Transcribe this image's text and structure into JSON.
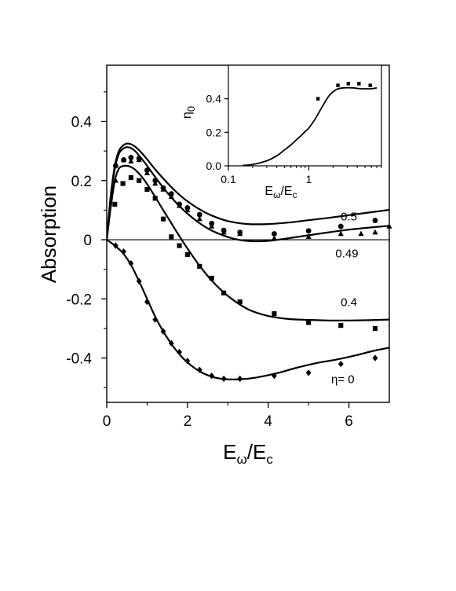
{
  "chart_data": [
    {
      "type": "line",
      "title": "",
      "xlabel": {
        "base": "E",
        "sub1": "ω",
        "sep": "/",
        "base2": "E",
        "sub2": "c"
      },
      "ylabel": "Absorption",
      "xlim": [
        0,
        7
      ],
      "ylim": [
        -0.55,
        0.59
      ],
      "x_ticks": [
        0,
        2,
        4,
        6
      ],
      "x_tick_labels": [
        "0",
        "2",
        "4",
        "6"
      ],
      "y_ticks": [
        0.4,
        0.2,
        0,
        -0.2,
        -0.4
      ],
      "y_tick_labels": [
        "0.4",
        "0.2",
        "0",
        "-0.2",
        "-0.4"
      ],
      "zero_line": true,
      "grid": false,
      "curve_labels": [
        {
          "text": "0.5",
          "x": 6.0,
          "y": 0.065
        },
        {
          "text": "0.49",
          "x": 5.95,
          "y": -0.06
        },
        {
          "text": "0.4",
          "x": 6.0,
          "y": -0.225
        },
        {
          "text": "η= 0",
          "x": 5.85,
          "y": -0.485
        }
      ],
      "series": [
        {
          "label": "0.5",
          "marker": "circle",
          "line": {
            "x": [
              0,
              0.1,
              0.2,
              0.3,
              0.4,
              0.5,
              0.6,
              0.7,
              0.8,
              0.9,
              1.0,
              1.2,
              1.4,
              1.6,
              1.8,
              2.0,
              2.3,
              2.6,
              3.0,
              3.5,
              4.0,
              4.5,
              5.0,
              5.5,
              6.0,
              6.5,
              7.0
            ],
            "y": [
              0,
              0.15,
              0.25,
              0.3,
              0.318,
              0.325,
              0.323,
              0.315,
              0.303,
              0.288,
              0.272,
              0.238,
              0.207,
              0.178,
              0.152,
              0.13,
              0.103,
              0.082,
              0.063,
              0.053,
              0.053,
              0.058,
              0.066,
              0.074,
              0.083,
              0.092,
              0.101
            ]
          },
          "points": {
            "x": [
              0.22,
              0.42,
              0.6,
              0.8,
              1.0,
              1.2,
              1.4,
              1.6,
              1.8,
              2.0,
              2.3,
              2.6,
              2.9,
              3.3,
              4.15,
              5.0,
              5.8,
              6.65
            ],
            "y": [
              0.25,
              0.27,
              0.278,
              0.275,
              0.235,
              0.2,
              0.175,
              0.155,
              0.12,
              0.108,
              0.085,
              0.055,
              0.032,
              0.025,
              0.02,
              0.03,
              0.045,
              0.065
            ]
          }
        },
        {
          "label": "0.49",
          "marker": "triangle",
          "line": {
            "x": [
              0,
              0.1,
              0.2,
              0.3,
              0.4,
              0.5,
              0.6,
              0.7,
              0.8,
              0.9,
              1.0,
              1.2,
              1.4,
              1.6,
              1.8,
              2.0,
              2.3,
              2.6,
              3.0,
              3.3,
              3.6,
              4.0,
              4.3,
              4.6,
              5.0,
              5.5,
              6.0,
              6.5,
              7.0
            ],
            "y": [
              0,
              0.14,
              0.24,
              0.29,
              0.307,
              0.313,
              0.31,
              0.3,
              0.285,
              0.268,
              0.25,
              0.212,
              0.176,
              0.143,
              0.114,
              0.088,
              0.056,
              0.031,
              0.009,
              -0.001,
              -0.005,
              -0.004,
              0.001,
              0.007,
              0.015,
              0.025,
              0.034,
              0.041,
              0.047
            ]
          },
          "points": {
            "x": [
              0.22,
              0.42,
              0.6,
              0.8,
              1.0,
              1.2,
              1.4,
              1.6,
              1.8,
              2.0,
              2.3,
              2.6,
              2.9,
              3.3,
              4.15,
              5.0,
              5.8,
              6.3,
              6.65,
              7.0
            ],
            "y": [
              0.2,
              0.27,
              0.265,
              0.27,
              0.225,
              0.19,
              0.17,
              0.145,
              0.115,
              0.1,
              0.07,
              0.045,
              0.025,
              0.02,
              0.005,
              0.01,
              0.02,
              0.02,
              0.025,
              0.045
            ]
          }
        },
        {
          "label": "0.4",
          "marker": "square",
          "line": {
            "x": [
              0,
              0.1,
              0.2,
              0.3,
              0.4,
              0.5,
              0.6,
              0.7,
              0.8,
              0.9,
              1.0,
              1.2,
              1.4,
              1.6,
              1.8,
              2.0,
              2.3,
              2.6,
              3.0,
              3.5,
              4.0,
              4.5,
              5.0,
              5.5,
              6.0,
              6.5,
              7.0
            ],
            "y": [
              0,
              0.11,
              0.2,
              0.24,
              0.249,
              0.25,
              0.246,
              0.237,
              0.224,
              0.207,
              0.188,
              0.145,
              0.1,
              0.056,
              0.012,
              -0.03,
              -0.088,
              -0.138,
              -0.19,
              -0.235,
              -0.258,
              -0.268,
              -0.271,
              -0.273,
              -0.273,
              -0.272,
              -0.27
            ]
          },
          "points": {
            "x": [
              0.2,
              0.4,
              0.6,
              0.8,
              1.0,
              1.2,
              1.4,
              1.6,
              1.8,
              2.0,
              2.3,
              2.6,
              2.9,
              3.3,
              4.15,
              5.0,
              5.8,
              6.65
            ],
            "y": [
              0.12,
              0.19,
              0.21,
              0.2,
              0.17,
              0.14,
              0.07,
              0.01,
              -0.02,
              -0.05,
              -0.09,
              -0.13,
              -0.18,
              -0.21,
              -0.25,
              -0.28,
              -0.29,
              -0.3
            ]
          }
        },
        {
          "label": "η= 0",
          "marker": "diamond",
          "line": {
            "x": [
              0,
              0.2,
              0.4,
              0.6,
              0.8,
              1.0,
              1.2,
              1.4,
              1.6,
              1.8,
              2.0,
              2.3,
              2.6,
              2.9,
              3.3,
              3.7,
              4.2,
              4.7,
              5.2,
              5.7,
              6.2,
              6.6,
              7.0
            ],
            "y": [
              0,
              -0.02,
              -0.045,
              -0.085,
              -0.14,
              -0.2,
              -0.26,
              -0.31,
              -0.352,
              -0.387,
              -0.415,
              -0.445,
              -0.463,
              -0.471,
              -0.472,
              -0.466,
              -0.452,
              -0.433,
              -0.417,
              -0.405,
              -0.39,
              -0.376,
              -0.365
            ]
          },
          "points": {
            "x": [
              0.22,
              0.42,
              0.6,
              0.8,
              1.0,
              1.2,
              1.4,
              1.6,
              1.8,
              2.0,
              2.3,
              2.6,
              2.9,
              3.3,
              4.15,
              5.0,
              5.8,
              6.65
            ],
            "y": [
              -0.02,
              -0.04,
              -0.08,
              -0.14,
              -0.21,
              -0.27,
              -0.31,
              -0.35,
              -0.38,
              -0.41,
              -0.44,
              -0.46,
              -0.47,
              -0.47,
              -0.46,
              -0.45,
              -0.42,
              -0.4
            ]
          }
        }
      ]
    },
    {
      "type": "line",
      "title": "",
      "xscale": "log",
      "xlabel": {
        "base": "E",
        "sub1": "ω",
        "sep": "/",
        "base2": "E",
        "sub2": "c"
      },
      "ylabel": {
        "base": "η",
        "sub": "0"
      },
      "xlim": [
        0.1,
        8
      ],
      "ylim": [
        0,
        0.6
      ],
      "x_ticks": [
        0.1,
        1
      ],
      "x_tick_labels": [
        "0.1",
        "1"
      ],
      "y_ticks": [
        0.0,
        0.2,
        0.4
      ],
      "y_tick_labels": [
        "0.0",
        "0.2",
        "0.4"
      ],
      "grid": false,
      "series": [
        {
          "marker": "square",
          "line": {
            "x": [
              0.15,
              0.2,
              0.3,
              0.4,
              0.5,
              0.6,
              0.7,
              0.8,
              0.9,
              1.0,
              1.2,
              1.5,
              1.8,
              2.2,
              2.7,
              3.5,
              4.5,
              6.0,
              7.0
            ],
            "y": [
              0.002,
              0.008,
              0.03,
              0.06,
              0.095,
              0.125,
              0.155,
              0.18,
              0.205,
              0.225,
              0.28,
              0.36,
              0.42,
              0.455,
              0.465,
              0.465,
              0.46,
              0.46,
              0.465
            ]
          },
          "points": {
            "x": [
              1.3,
              2.3,
              3.1,
              4.2,
              5.8
            ],
            "y": [
              0.4,
              0.48,
              0.49,
              0.49,
              0.48
            ]
          }
        }
      ]
    }
  ]
}
